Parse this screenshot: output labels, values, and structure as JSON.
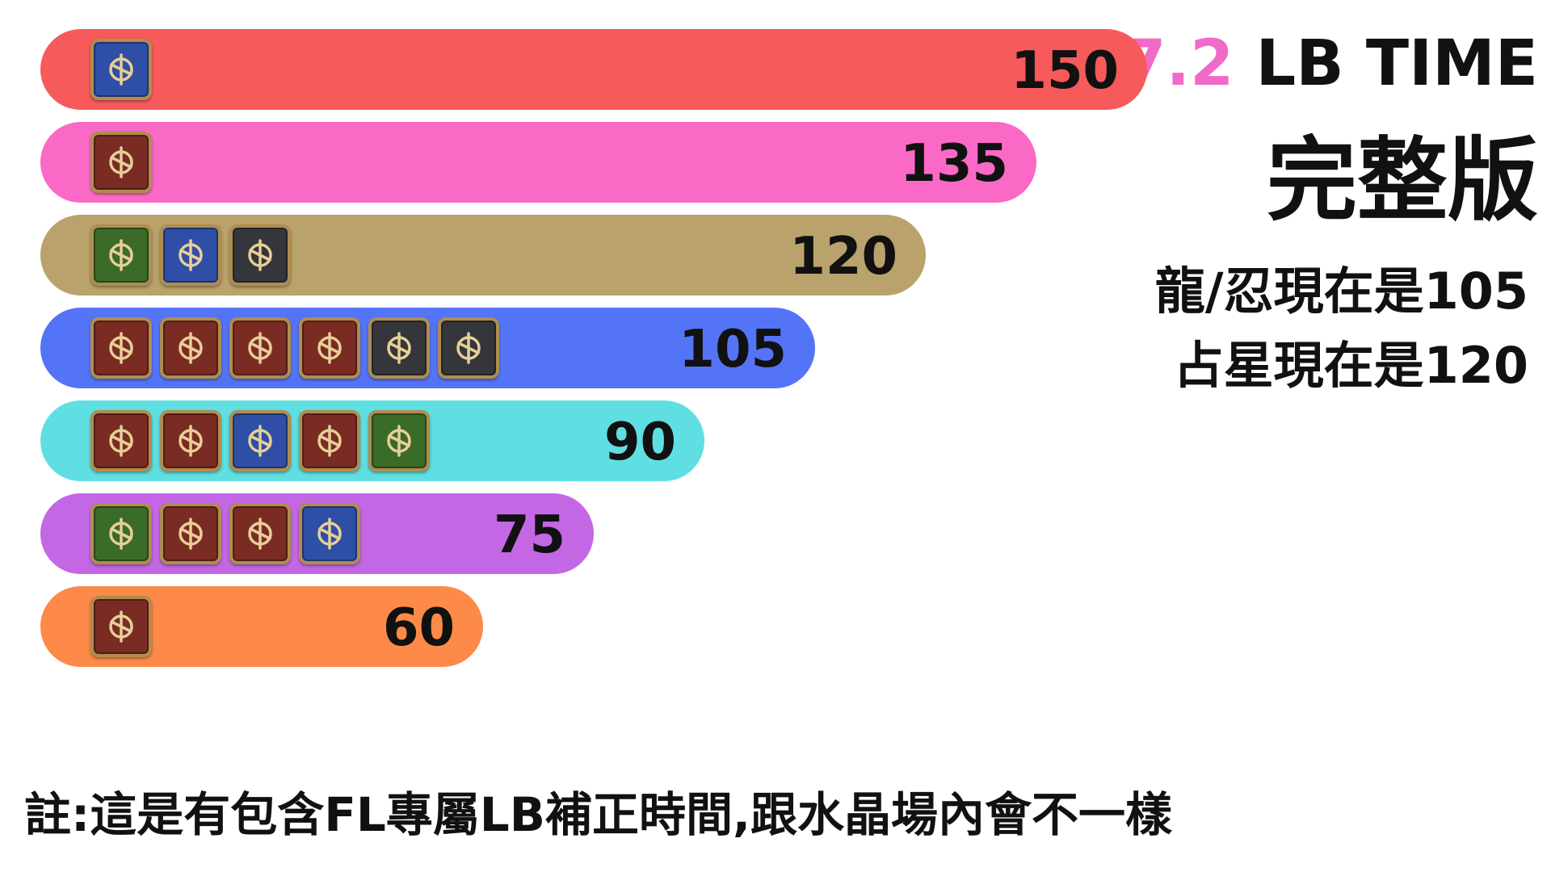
{
  "title": {
    "version": "7.2",
    "text": " LB TIME"
  },
  "subtitle": "完整版",
  "notes": [
    "龍/忍現在是105",
    "占星現在是120"
  ],
  "footnote": "註:這是有包含FL專屬LB補正時間,跟水晶場內會不一樣",
  "chart_data": {
    "type": "bar",
    "orientation": "horizontal",
    "values": [
      150,
      135,
      120,
      105,
      90,
      75,
      60
    ],
    "data_labels": [
      "150",
      "135",
      "120",
      "105",
      "90",
      "75",
      "60"
    ],
    "colors": [
      "#f75a5a",
      "#fb69c6",
      "#b9a26c",
      "#5474f8",
      "#5fdfe2",
      "#c467e4",
      "#fd8a48"
    ],
    "xlim": [
      0,
      150
    ],
    "grid": false,
    "legend": "none",
    "icon_groups": [
      [
        {
          "name": "paladin-icon",
          "color": "blue"
        }
      ],
      [
        {
          "name": "black-mage-icon",
          "color": "red"
        }
      ],
      [
        {
          "name": "sage-icon",
          "color": "green"
        },
        {
          "name": "shield-icon",
          "color": "blue"
        },
        {
          "name": "machinist-icon",
          "color": "gray"
        }
      ],
      [
        {
          "name": "samurai-icon",
          "color": "red"
        },
        {
          "name": "summoner-icon",
          "color": "red"
        },
        {
          "name": "bard-icon",
          "color": "red"
        },
        {
          "name": "viper-icon",
          "color": "red"
        },
        {
          "name": "reaper-icon",
          "color": "gray"
        },
        {
          "name": "ninja-icon",
          "color": "gray"
        }
      ],
      [
        {
          "name": "red-mage-icon",
          "color": "red"
        },
        {
          "name": "dancer-icon",
          "color": "red"
        },
        {
          "name": "warrior-icon",
          "color": "blue"
        },
        {
          "name": "dragoon-icon",
          "color": "red"
        },
        {
          "name": "scholar-icon",
          "color": "green"
        }
      ],
      [
        {
          "name": "white-mage-icon",
          "color": "green"
        },
        {
          "name": "pictomancer-icon",
          "color": "red"
        },
        {
          "name": "monk-icon",
          "color": "red"
        },
        {
          "name": "gunbreaker-icon",
          "color": "blue"
        }
      ],
      [
        {
          "name": "astrologian-icon",
          "color": "red"
        }
      ]
    ]
  }
}
